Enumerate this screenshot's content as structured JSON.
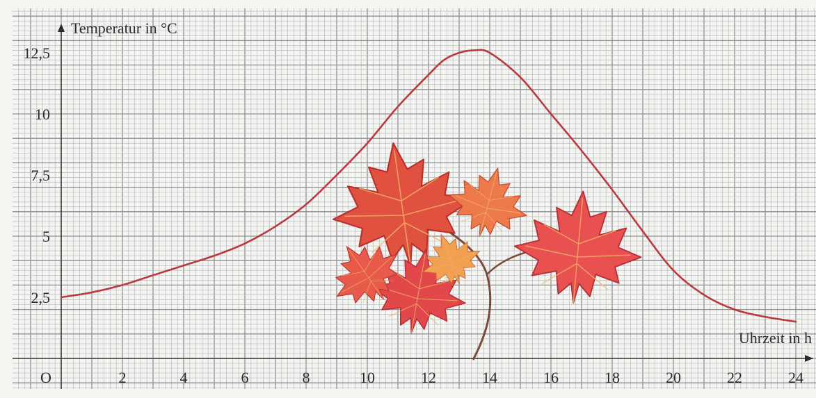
{
  "chart_data": {
    "type": "line",
    "title": "",
    "xlabel": "Uhrzeit in h",
    "ylabel": "Temperatur in °C",
    "origin_label": "O",
    "xlim": [
      0,
      24.2
    ],
    "ylim": [
      0,
      13.7
    ],
    "grid": true,
    "line_color": "#b8393f",
    "x_ticks": [
      2,
      4,
      6,
      8,
      10,
      12,
      14,
      16,
      18,
      20,
      22,
      24
    ],
    "y_ticks": [
      2.5,
      5,
      7.5,
      10,
      12.5
    ],
    "y_tick_labels": [
      "2,5",
      "5",
      "7,5",
      "10",
      "12,5"
    ],
    "series": [
      {
        "x": [
          0,
          1,
          2,
          3,
          4,
          5,
          6,
          7,
          8,
          9,
          10,
          11,
          12,
          12.5,
          13,
          13.5,
          14,
          15,
          16,
          17,
          18,
          19,
          20,
          21,
          22,
          23,
          24
        ],
        "y": [
          2.5,
          2.7,
          3.0,
          3.4,
          3.8,
          4.2,
          4.7,
          5.4,
          6.3,
          7.5,
          8.8,
          10.3,
          11.6,
          12.2,
          12.5,
          12.6,
          12.5,
          11.5,
          10.0,
          8.5,
          6.9,
          5.2,
          3.6,
          2.6,
          2.0,
          1.7,
          1.5
        ]
      }
    ]
  }
}
